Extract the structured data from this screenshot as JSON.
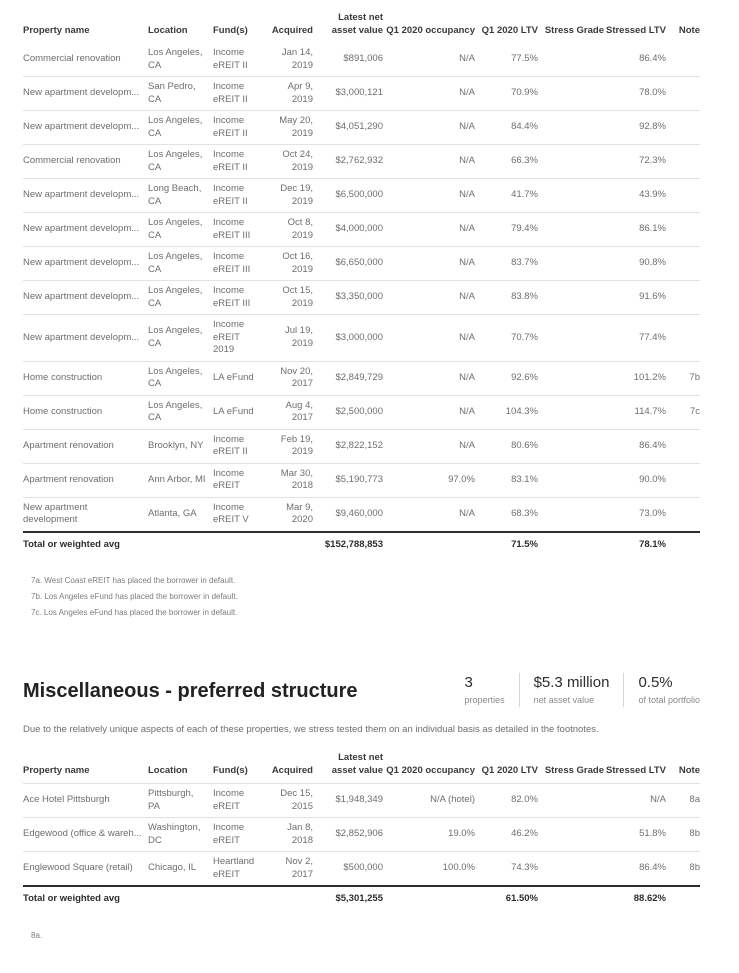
{
  "colors": {
    "header-text": "#3a3a3a",
    "body-text": "#6e6e6e",
    "strong-text": "#2d2d2d",
    "divider": "#e2e2e2",
    "thick": "#2d2d2d",
    "muted": "#8a8a8a",
    "footnote": "#7d7d7d",
    "stat-divider": "#d6d6d6",
    "bg": "#ffffff"
  },
  "columns": [
    {
      "key": "property",
      "label": "Property name"
    },
    {
      "key": "location",
      "label": "Location"
    },
    {
      "key": "fund",
      "label": "Fund(s)"
    },
    {
      "key": "acquired",
      "label": "Acquired"
    },
    {
      "key": "nav",
      "label": "Latest net\nasset value"
    },
    {
      "key": "occupancy",
      "label": "Q1 2020 occupancy"
    },
    {
      "key": "ltv",
      "label": "Q1 2020 LTV"
    },
    {
      "key": "stress_grade",
      "label": "Stress Grade"
    },
    {
      "key": "stressed_ltv",
      "label": "Stressed LTV"
    },
    {
      "key": "note",
      "label": "Note"
    }
  ],
  "table1": {
    "rows": [
      {
        "property": "Commercial renovation",
        "location": "Los Angeles,\nCA",
        "fund": "Income\neREIT II",
        "acquired": "Jan 14,\n2019",
        "nav": "$891,006",
        "occupancy": "N/A",
        "ltv": "77.5%",
        "stress_grade": "",
        "stressed_ltv": "86.4%",
        "note": ""
      },
      {
        "property": "New apartment developm...",
        "location": "San Pedro,\nCA",
        "fund": "Income\neREIT II",
        "acquired": "Apr 9,\n2019",
        "nav": "$3,000,121",
        "occupancy": "N/A",
        "ltv": "70.9%",
        "stress_grade": "",
        "stressed_ltv": "78.0%",
        "note": ""
      },
      {
        "property": "New apartment developm...",
        "location": "Los Angeles,\nCA",
        "fund": "Income\neREIT II",
        "acquired": "May 20,\n2019",
        "nav": "$4,051,290",
        "occupancy": "N/A",
        "ltv": "84.4%",
        "stress_grade": "",
        "stressed_ltv": "92.8%",
        "note": ""
      },
      {
        "property": "Commercial renovation",
        "location": "Los Angeles,\nCA",
        "fund": "Income\neREIT II",
        "acquired": "Oct 24,\n2019",
        "nav": "$2,762,932",
        "occupancy": "N/A",
        "ltv": "66.3%",
        "stress_grade": "",
        "stressed_ltv": "72.3%",
        "note": ""
      },
      {
        "property": "New apartment developm...",
        "location": "Long Beach,\nCA",
        "fund": "Income\neREIT II",
        "acquired": "Dec 19,\n2019",
        "nav": "$6,500,000",
        "occupancy": "N/A",
        "ltv": "41.7%",
        "stress_grade": "",
        "stressed_ltv": "43.9%",
        "note": ""
      },
      {
        "property": "New apartment developm...",
        "location": "Los Angeles,\nCA",
        "fund": "Income\neREIT III",
        "acquired": "Oct 8,\n2019",
        "nav": "$4,000,000",
        "occupancy": "N/A",
        "ltv": "79.4%",
        "stress_grade": "",
        "stressed_ltv": "86.1%",
        "note": ""
      },
      {
        "property": "New apartment developm...",
        "location": "Los Angeles,\nCA",
        "fund": "Income\neREIT III",
        "acquired": "Oct 16,\n2019",
        "nav": "$6,650,000",
        "occupancy": "N/A",
        "ltv": "83.7%",
        "stress_grade": "",
        "stressed_ltv": "90.8%",
        "note": ""
      },
      {
        "property": "New apartment developm...",
        "location": "Los Angeles,\nCA",
        "fund": "Income\neREIT III",
        "acquired": "Oct 15,\n2019",
        "nav": "$3,350,000",
        "occupancy": "N/A",
        "ltv": "83.8%",
        "stress_grade": "",
        "stressed_ltv": "91.6%",
        "note": ""
      },
      {
        "property": "New apartment developm...",
        "location": "Los Angeles,\nCA",
        "fund": "Income\neREIT\n2019",
        "acquired": "Jul 19,\n2019",
        "nav": "$3,000,000",
        "occupancy": "N/A",
        "ltv": "70.7%",
        "stress_grade": "",
        "stressed_ltv": "77.4%",
        "note": ""
      },
      {
        "property": "Home construction",
        "location": "Los Angeles,\nCA",
        "fund": "LA eFund",
        "acquired": "Nov 20,\n2017",
        "nav": "$2,849,729",
        "occupancy": "N/A",
        "ltv": "92.6%",
        "stress_grade": "",
        "stressed_ltv": "101.2%",
        "note": "7b"
      },
      {
        "property": "Home construction",
        "location": "Los Angeles,\nCA",
        "fund": "LA eFund",
        "acquired": "Aug 4,\n2017",
        "nav": "$2,500,000",
        "occupancy": "N/A",
        "ltv": "104.3%",
        "stress_grade": "",
        "stressed_ltv": "114.7%",
        "note": "7c"
      },
      {
        "property": "Apartment renovation",
        "location": "Brooklyn, NY",
        "fund": "Income\neREIT II",
        "acquired": "Feb 19,\n2019",
        "nav": "$2,822,152",
        "occupancy": "N/A",
        "ltv": "80.6%",
        "stress_grade": "",
        "stressed_ltv": "86.4%",
        "note": ""
      },
      {
        "property": "Apartment renovation",
        "location": "Ann Arbor, MI",
        "fund": "Income\neREIT",
        "acquired": "Mar 30,\n2018",
        "nav": "$5,190,773",
        "occupancy": "97.0%",
        "ltv": "83.1%",
        "stress_grade": "",
        "stressed_ltv": "90.0%",
        "note": ""
      },
      {
        "property": "New apartment\ndevelopment",
        "location": "Atlanta, GA",
        "fund": "Income\neREIT V",
        "acquired": "Mar 9,\n2020",
        "nav": "$9,460,000",
        "occupancy": "N/A",
        "ltv": "68.3%",
        "stress_grade": "",
        "stressed_ltv": "73.0%",
        "note": ""
      }
    ],
    "total": {
      "label": "Total or weighted avg",
      "nav": "$152,788,853",
      "occupancy": "",
      "ltv": "71.5%",
      "stress_grade": "",
      "stressed_ltv": "78.1%",
      "note": ""
    },
    "footnotes": [
      "7a. West Coast eREIT has placed the borrower in default.",
      "7b. Los Angeles eFund has placed the borrower in default.",
      "7c. Los Angeles eFund has placed the borrower in default."
    ]
  },
  "section": {
    "title": "Miscellaneous - preferred structure",
    "stats": [
      {
        "value": "3",
        "label": "properties"
      },
      {
        "value": "$5.3 million",
        "label": "net asset value"
      },
      {
        "value": "0.5%",
        "label": "of total portfolio"
      }
    ],
    "description": "Due to the relatively unique aspects of each of these properties, we stress tested them on an individual basis as detailed in the footnotes."
  },
  "table2": {
    "rows": [
      {
        "property": "Ace Hotel Pittsburgh",
        "location": "Pittsburgh,\nPA",
        "fund": "Income\neREIT",
        "acquired": "Dec 15,\n2015",
        "nav": "$1,948,349",
        "occupancy": "N/A (hotel)",
        "ltv": "82.0%",
        "stress_grade": "",
        "stressed_ltv": "N/A",
        "note": "8a"
      },
      {
        "property": "Edgewood (office & wareh...",
        "location": "Washington,\nDC",
        "fund": "Income\neREIT",
        "acquired": "Jan 8,\n2018",
        "nav": "$2,852,906",
        "occupancy": "19.0%",
        "ltv": "46.2%",
        "stress_grade": "",
        "stressed_ltv": "51.8%",
        "note": "8b"
      },
      {
        "property": "Englewood Square (retail)",
        "location": "Chicago, IL",
        "fund": "Heartland\neREIT",
        "acquired": "Nov 2,\n2017",
        "nav": "$500,000",
        "occupancy": "100.0%",
        "ltv": "74.3%",
        "stress_grade": "",
        "stressed_ltv": "86.4%",
        "note": "8b"
      },
      {
        "property": "",
        "location": "",
        "fund": "",
        "acquired": "",
        "nav": "",
        "occupancy": "",
        "ltv": "",
        "stress_grade": "",
        "stressed_ltv": "",
        "note": ""
      }
    ],
    "total": {
      "label": "Total or weighted avg",
      "nav": "$5,301,255",
      "occupancy": "",
      "ltv": "61.50%",
      "stress_grade": "",
      "stressed_ltv": "88.62%",
      "note": ""
    },
    "footnotes": [
      "8a."
    ]
  }
}
